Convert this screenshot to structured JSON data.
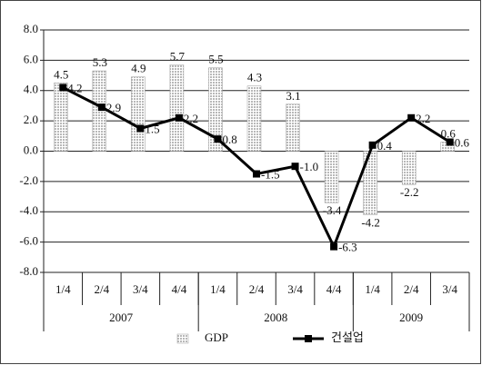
{
  "chart_data": {
    "type": "bar_line",
    "groups": [
      {
        "name": "2007",
        "categories": [
          "1/4",
          "2/4",
          "3/4",
          "4/4"
        ]
      },
      {
        "name": "2008",
        "categories": [
          "1/4",
          "2/4",
          "3/4",
          "4/4"
        ]
      },
      {
        "name": "2009",
        "categories": [
          "1/4",
          "2/4",
          "3/4"
        ]
      }
    ],
    "series": [
      {
        "name": "GDP",
        "type": "bar",
        "color": "#b8b8b8",
        "values": [
          4.5,
          5.3,
          4.9,
          5.7,
          5.5,
          4.3,
          3.1,
          -3.4,
          -4.2,
          -2.2,
          0.6
        ],
        "value_labels": [
          "4.5",
          "5.3",
          "4.9",
          "5.7",
          "5.5",
          "4.3",
          "3.1",
          "-3.4",
          "-4.2",
          "-2.2",
          "0.6"
        ]
      },
      {
        "name": "건설업",
        "type": "line",
        "color": "#000000",
        "values": [
          4.2,
          2.9,
          1.5,
          2.2,
          0.8,
          -1.5,
          -1.0,
          -6.3,
          0.4,
          2.2,
          0.6
        ],
        "value_labels": [
          "4.2",
          "2.9",
          "1.5",
          "2.2",
          "0.8",
          "-1.5",
          "-1.0",
          "-6.3",
          "0.4",
          "2.2",
          "0.6"
        ]
      }
    ],
    "ylim": [
      -8,
      8
    ],
    "yticks": [
      {
        "value": -8,
        "label": "-8.0"
      },
      {
        "value": -6,
        "label": "-6.0"
      },
      {
        "value": -4,
        "label": "-4.0"
      },
      {
        "value": -2,
        "label": "-2.0"
      },
      {
        "value": 0,
        "label": "0.0"
      },
      {
        "value": 2,
        "label": "2.0"
      },
      {
        "value": 4,
        "label": "4.0"
      },
      {
        "value": 6,
        "label": "6.0"
      },
      {
        "value": 8,
        "label": "8.0"
      }
    ],
    "grid": true,
    "legend": "bottom"
  }
}
